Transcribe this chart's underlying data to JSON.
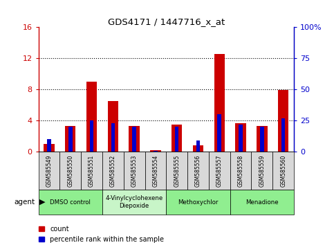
{
  "title": "GDS4171 / 1447716_x_at",
  "samples": [
    "GSM585549",
    "GSM585550",
    "GSM585551",
    "GSM585552",
    "GSM585553",
    "GSM585554",
    "GSM585555",
    "GSM585556",
    "GSM585557",
    "GSM585558",
    "GSM585559",
    "GSM585560"
  ],
  "red_values": [
    1.0,
    3.3,
    9.0,
    6.5,
    3.3,
    0.2,
    3.5,
    0.8,
    12.5,
    3.7,
    3.3,
    7.9
  ],
  "blue_values_pct": [
    10,
    20,
    25,
    23,
    20,
    1,
    20,
    9,
    30,
    22,
    20,
    27
  ],
  "ylim_left": [
    0,
    16
  ],
  "ylim_right": [
    0,
    100
  ],
  "yticks_left": [
    0,
    4,
    8,
    12,
    16
  ],
  "yticks_right": [
    0,
    25,
    50,
    75,
    100
  ],
  "ytick_labels_left": [
    "0",
    "4",
    "8",
    "12",
    "16"
  ],
  "ytick_labels_right": [
    "0",
    "25",
    "50",
    "75",
    "100%"
  ],
  "red_color": "#cc0000",
  "blue_color": "#0000cc",
  "agent_groups": [
    {
      "label": "DMSO control",
      "start": 0,
      "end": 3,
      "color": "#90ee90"
    },
    {
      "label": "4-Vinylcyclohexene\nDiepoxide",
      "start": 3,
      "end": 6,
      "color": "#c8f5c8"
    },
    {
      "label": "Methoxychlor",
      "start": 6,
      "end": 9,
      "color": "#90ee90"
    },
    {
      "label": "Menadione",
      "start": 9,
      "end": 12,
      "color": "#90ee90"
    }
  ],
  "legend_red_label": "count",
  "legend_blue_label": "percentile rank within the sample",
  "agent_label": "agent",
  "red_bar_width": 0.5,
  "blue_bar_width": 0.18
}
